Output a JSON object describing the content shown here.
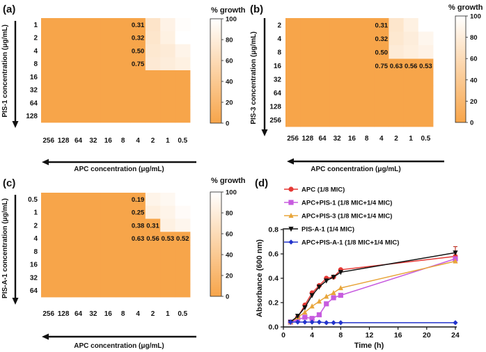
{
  "colors": {
    "orange": "#F7A54A",
    "white": "#FFFFFF",
    "red": "#E53935",
    "magenta": "#C75BDF",
    "amber": "#E8A53A",
    "black": "#111111",
    "blue": "#2233CC"
  },
  "chart_data": [
    {
      "panel": "(a)",
      "type": "heatmap",
      "xlabel": "APC concentration (μg/mL)",
      "ylabel": "PIS-1 concentration (μg/mL)",
      "x_ticks": [
        "256",
        "128",
        "64",
        "32",
        "16",
        "8",
        "4",
        "2",
        "1",
        "0.5"
      ],
      "y_ticks": [
        "1",
        "2",
        "4",
        "8",
        "16",
        "32",
        "64",
        "128"
      ],
      "colorbar": {
        "title": "% growth",
        "ticks": [
          "0",
          "20",
          "40",
          "60",
          "80",
          "100"
        ],
        "range": [
          0,
          100
        ]
      },
      "growth": [
        [
          0,
          0,
          0,
          0,
          0,
          0,
          0,
          70,
          86,
          98
        ],
        [
          0,
          0,
          0,
          0,
          0,
          0,
          0,
          72,
          84,
          100
        ],
        [
          0,
          0,
          0,
          0,
          0,
          0,
          0,
          74,
          78,
          88
        ],
        [
          0,
          0,
          0,
          0,
          0,
          0,
          0,
          76,
          80,
          84
        ],
        [
          0,
          0,
          0,
          0,
          0,
          0,
          0,
          0,
          0,
          0
        ],
        [
          0,
          0,
          0,
          0,
          0,
          0,
          0,
          0,
          0,
          0
        ],
        [
          0,
          0,
          0,
          0,
          0,
          0,
          0,
          0,
          0,
          0
        ],
        [
          0,
          0,
          0,
          0,
          0,
          0,
          0,
          0,
          0,
          0
        ]
      ],
      "fici": [
        {
          "row": 0,
          "col": 6,
          "label": "0.31"
        },
        {
          "row": 1,
          "col": 6,
          "label": "0.32"
        },
        {
          "row": 2,
          "col": 6,
          "label": "0.50"
        },
        {
          "row": 3,
          "col": 6,
          "label": "0.75"
        }
      ]
    },
    {
      "panel": "(b)",
      "type": "heatmap",
      "xlabel": "APC concentration (μg/mL)",
      "ylabel": "PIS-3 concentration (μg/mL)",
      "x_ticks": [
        "256",
        "128",
        "64",
        "32",
        "16",
        "8",
        "4",
        "2",
        "1",
        "0.5"
      ],
      "y_ticks": [
        "2",
        "4",
        "8",
        "16",
        "32",
        "64",
        "128",
        "256"
      ],
      "colorbar": {
        "title": "% growth",
        "ticks": [
          "0",
          "20",
          "40",
          "60",
          "80",
          "100"
        ],
        "range": [
          0,
          100
        ]
      },
      "growth": [
        [
          0,
          0,
          0,
          0,
          0,
          0,
          0,
          72,
          84,
          100
        ],
        [
          0,
          0,
          0,
          0,
          0,
          0,
          0,
          74,
          80,
          90
        ],
        [
          0,
          0,
          0,
          0,
          0,
          0,
          0,
          78,
          82,
          86
        ],
        [
          0,
          0,
          0,
          0,
          0,
          0,
          0,
          0,
          0,
          0
        ],
        [
          0,
          0,
          0,
          0,
          0,
          0,
          0,
          0,
          0,
          0
        ],
        [
          0,
          0,
          0,
          0,
          0,
          0,
          0,
          0,
          0,
          0
        ],
        [
          0,
          0,
          0,
          0,
          0,
          0,
          0,
          0,
          0,
          0
        ],
        [
          0,
          0,
          0,
          0,
          0,
          0,
          0,
          0,
          0,
          0
        ]
      ],
      "fici": [
        {
          "row": 0,
          "col": 6,
          "label": "0.31"
        },
        {
          "row": 1,
          "col": 6,
          "label": "0.32"
        },
        {
          "row": 2,
          "col": 6,
          "label": "0.50"
        },
        {
          "row": 3,
          "col": 6,
          "label": "0.75"
        },
        {
          "row": 3,
          "col": 7,
          "label": "0.63"
        },
        {
          "row": 3,
          "col": 8,
          "label": "0.56"
        },
        {
          "row": 3,
          "col": 9,
          "label": "0.53"
        }
      ]
    },
    {
      "panel": "(c)",
      "type": "heatmap",
      "xlabel": "APC concentration (μg/mL)",
      "ylabel": "PIS-A-1 concentration (μg/mL)",
      "x_ticks": [
        "256",
        "128",
        "64",
        "32",
        "16",
        "8",
        "4",
        "2",
        "1",
        "0.5"
      ],
      "y_ticks": [
        "0.5",
        "1",
        "2",
        "4",
        "8",
        "16",
        "32",
        "64"
      ],
      "colorbar": {
        "title": "% growth",
        "ticks": [
          "0",
          "20",
          "40",
          "60",
          "80",
          "100"
        ],
        "range": [
          0,
          100
        ]
      },
      "growth": [
        [
          0,
          0,
          0,
          0,
          0,
          0,
          0,
          88,
          92,
          100
        ],
        [
          0,
          0,
          0,
          0,
          0,
          0,
          0,
          82,
          88,
          96
        ],
        [
          0,
          0,
          0,
          0,
          0,
          0,
          0,
          0,
          84,
          90
        ],
        [
          0,
          0,
          0,
          0,
          0,
          0,
          0,
          0,
          0,
          0
        ],
        [
          0,
          0,
          0,
          0,
          0,
          0,
          0,
          0,
          0,
          0
        ],
        [
          0,
          0,
          0,
          0,
          0,
          0,
          0,
          0,
          0,
          0
        ],
        [
          0,
          0,
          0,
          0,
          0,
          0,
          0,
          0,
          0,
          0
        ],
        [
          0,
          0,
          0,
          0,
          0,
          0,
          0,
          0,
          0,
          0
        ]
      ],
      "fici": [
        {
          "row": 0,
          "col": 6,
          "label": "0.19"
        },
        {
          "row": 1,
          "col": 6,
          "label": "0.25"
        },
        {
          "row": 2,
          "col": 6,
          "label": "0.38"
        },
        {
          "row": 2,
          "col": 7,
          "label": "0.31"
        },
        {
          "row": 3,
          "col": 6,
          "label": "0.63"
        },
        {
          "row": 3,
          "col": 7,
          "label": "0.56"
        },
        {
          "row": 3,
          "col": 8,
          "label": "0.53"
        },
        {
          "row": 3,
          "col": 9,
          "label": "0.52"
        }
      ]
    },
    {
      "panel": "(d)",
      "type": "line",
      "xlabel": "Time (h)",
      "ylabel": "Absorbance (600 nm)",
      "xlim": [
        0,
        24
      ],
      "ylim": [
        0,
        0.8
      ],
      "x_ticks": [
        0,
        4,
        8,
        12,
        16,
        20,
        24
      ],
      "y_ticks": [
        0.0,
        0.2,
        0.4,
        0.6,
        0.8
      ],
      "series": [
        {
          "name": "APC (1/8 MIC)",
          "color": "red",
          "marker": "circle",
          "x": [
            1,
            2,
            3,
            4,
            5,
            6,
            7,
            8,
            24
          ],
          "y": [
            0.04,
            0.08,
            0.18,
            0.28,
            0.34,
            0.4,
            0.41,
            0.47,
            0.58
          ]
        },
        {
          "name": "APC+PIS-1 (1/8 MIC+1/4 MIC)",
          "color": "magenta",
          "marker": "square",
          "x": [
            1,
            2,
            3,
            4,
            5,
            6,
            7,
            8,
            24
          ],
          "y": [
            0.04,
            0.06,
            0.08,
            0.07,
            0.1,
            0.19,
            0.24,
            0.26,
            0.56
          ]
        },
        {
          "name": "APC+PIS-3 (1/8 MIC+1/4 MIC)",
          "color": "amber",
          "marker": "triangle-up",
          "x": [
            1,
            2,
            3,
            4,
            5,
            6,
            7,
            8,
            24
          ],
          "y": [
            0.04,
            0.08,
            0.12,
            0.17,
            0.21,
            0.25,
            0.28,
            0.32,
            0.54
          ]
        },
        {
          "name": "PIS-A-1 (1/4 MIC)",
          "color": "black",
          "marker": "triangle-down",
          "x": [
            1,
            2,
            3,
            4,
            5,
            6,
            7,
            8,
            24
          ],
          "y": [
            0.04,
            0.09,
            0.16,
            0.26,
            0.33,
            0.38,
            0.41,
            0.45,
            0.61
          ]
        },
        {
          "name": "APC+PIS-A-1 (1/8 MIC+1/4 MIC)",
          "color": "blue",
          "marker": "diamond",
          "x": [
            1,
            2,
            3,
            4,
            5,
            6,
            7,
            8,
            24
          ],
          "y": [
            0.04,
            0.04,
            0.04,
            0.04,
            0.04,
            0.035,
            0.035,
            0.035,
            0.035
          ]
        }
      ]
    }
  ]
}
